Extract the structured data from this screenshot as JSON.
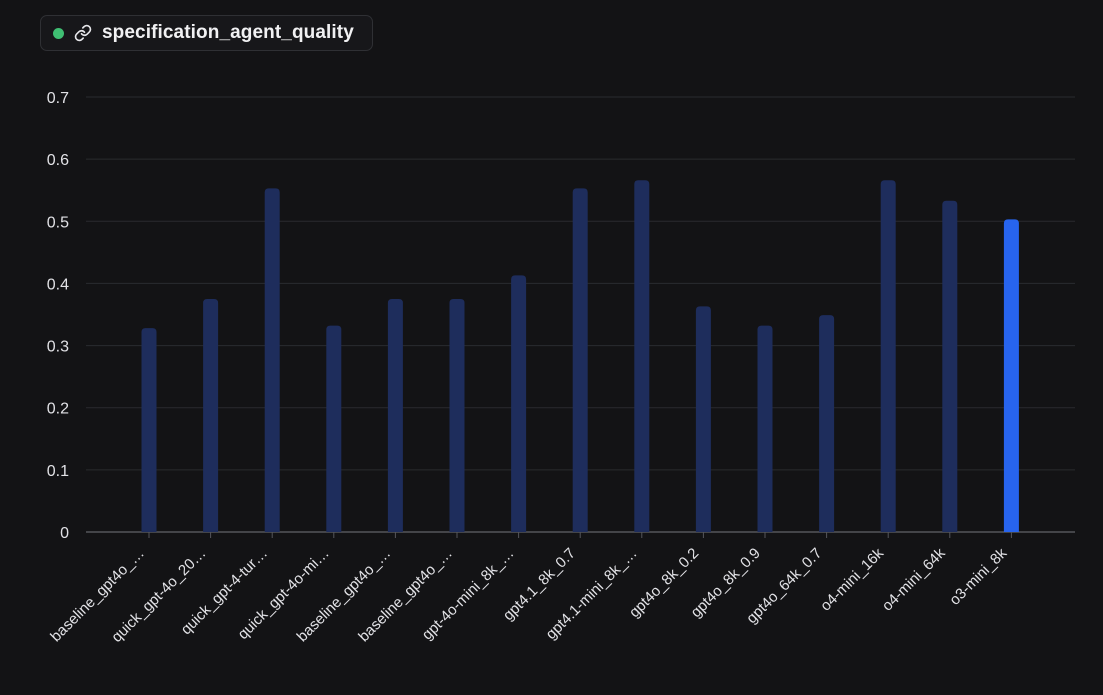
{
  "legend": {
    "label": "specification_agent_quality",
    "dot_color": "#3fbf73",
    "icon": "link-icon"
  },
  "colors": {
    "bar": "#1e2d5c",
    "bar_highlight": "#2764ee",
    "grid": "#2a2b2f",
    "axis": "#55565b",
    "text": "#e2e2e6"
  },
  "chart_data": {
    "type": "bar",
    "ylim": [
      0,
      0.7
    ],
    "yticks": [
      0,
      0.1,
      0.2,
      0.3,
      0.4,
      0.5,
      0.6,
      0.7
    ],
    "ytick_labels": [
      "0",
      "0.1",
      "0.2",
      "0.3",
      "0.4",
      "0.5",
      "0.6",
      "0.7"
    ],
    "grid": true,
    "categories": [
      "baseline_gpt4o_…",
      "quick_gpt-4o_20…",
      "quick_gpt-4-tur…",
      "quick_gpt-4o-mi…",
      "baseline_gpt4o_…",
      "baseline_gpt4o_…",
      "gpt-4o-mini_8k_…",
      "gpt4.1_8k_0.7",
      "gpt4.1-mini_8k_…",
      "gpt4o_8k_0.2",
      "gpt4o_8k_0.9",
      "gpt4o_64k_0.7",
      "o4-mini_16k",
      "o4-mini_64k",
      "o3-mini_8k"
    ],
    "values": [
      0.328,
      0.375,
      0.553,
      0.332,
      0.375,
      0.375,
      0.413,
      0.553,
      0.566,
      0.363,
      0.332,
      0.349,
      0.566,
      0.533,
      0.503
    ],
    "highlight_index": 14
  }
}
